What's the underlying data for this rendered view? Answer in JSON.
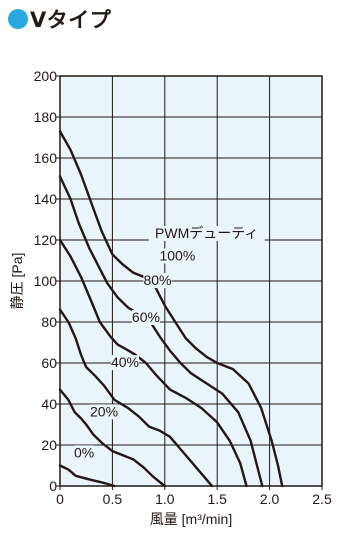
{
  "heading": {
    "title": "Vタイプ",
    "dot_color": "#29a9e0"
  },
  "colors": {
    "plot_background": "#eaf4fb",
    "grid": "#231815",
    "curve": "#231815"
  },
  "chart_data": {
    "type": "line",
    "xlabel": "風量 [m³/min]",
    "ylabel": "静圧 [Pa]",
    "xlim": [
      0,
      2.5
    ],
    "ylim": [
      0,
      200
    ],
    "xticks": [
      "0",
      "0.5",
      "1.0",
      "1.5",
      "2.0",
      "2.5"
    ],
    "yticks": [
      "0",
      "20",
      "40",
      "60",
      "80",
      "100",
      "120",
      "140",
      "160",
      "180",
      "200"
    ],
    "grid": true,
    "annotation_title": "PWMデューティ",
    "series": [
      {
        "name": "0%",
        "points": [
          [
            0,
            10
          ],
          [
            0.08,
            8
          ],
          [
            0.15,
            5
          ],
          [
            0.22,
            4
          ],
          [
            0.3,
            3
          ],
          [
            0.38,
            2
          ],
          [
            0.45,
            1
          ],
          [
            0.52,
            0
          ]
        ]
      },
      {
        "name": "20%",
        "points": [
          [
            0,
            47
          ],
          [
            0.08,
            42
          ],
          [
            0.14,
            36
          ],
          [
            0.2,
            33
          ],
          [
            0.25,
            30
          ],
          [
            0.32,
            25
          ],
          [
            0.4,
            21
          ],
          [
            0.5,
            17
          ],
          [
            0.6,
            15
          ],
          [
            0.7,
            13
          ],
          [
            0.8,
            9
          ],
          [
            0.88,
            5
          ],
          [
            0.95,
            2
          ],
          [
            1.0,
            0
          ]
        ]
      },
      {
        "name": "40%",
        "points": [
          [
            0,
            86
          ],
          [
            0.08,
            80
          ],
          [
            0.15,
            72
          ],
          [
            0.2,
            64
          ],
          [
            0.25,
            58
          ],
          [
            0.33,
            54
          ],
          [
            0.42,
            49
          ],
          [
            0.52,
            42
          ],
          [
            0.65,
            38
          ],
          [
            0.75,
            34
          ],
          [
            0.85,
            29
          ],
          [
            0.95,
            27
          ],
          [
            1.05,
            24
          ],
          [
            1.15,
            18
          ],
          [
            1.25,
            12
          ],
          [
            1.35,
            6
          ],
          [
            1.45,
            0
          ]
        ]
      },
      {
        "name": "60%",
        "points": [
          [
            0,
            120
          ],
          [
            0.1,
            112
          ],
          [
            0.2,
            102
          ],
          [
            0.3,
            90
          ],
          [
            0.38,
            80
          ],
          [
            0.48,
            73
          ],
          [
            0.55,
            69
          ],
          [
            0.62,
            67
          ],
          [
            0.72,
            64
          ],
          [
            0.82,
            60
          ],
          [
            0.92,
            54
          ],
          [
            1.05,
            47
          ],
          [
            1.2,
            43
          ],
          [
            1.35,
            38
          ],
          [
            1.5,
            31
          ],
          [
            1.62,
            22
          ],
          [
            1.72,
            11
          ],
          [
            1.78,
            0
          ]
        ]
      },
      {
        "name": "80%",
        "points": [
          [
            0,
            151
          ],
          [
            0.1,
            140
          ],
          [
            0.18,
            128
          ],
          [
            0.28,
            116
          ],
          [
            0.38,
            106
          ],
          [
            0.45,
            99
          ],
          [
            0.55,
            92
          ],
          [
            0.65,
            87
          ],
          [
            0.75,
            84
          ],
          [
            0.85,
            81
          ],
          [
            0.95,
            73
          ],
          [
            1.05,
            66
          ],
          [
            1.15,
            60
          ],
          [
            1.25,
            55
          ],
          [
            1.4,
            50
          ],
          [
            1.55,
            45
          ],
          [
            1.7,
            36
          ],
          [
            1.82,
            22
          ],
          [
            1.88,
            10
          ],
          [
            1.93,
            0
          ]
        ]
      },
      {
        "name": "100%",
        "points": [
          [
            0,
            173
          ],
          [
            0.1,
            164
          ],
          [
            0.2,
            152
          ],
          [
            0.3,
            138
          ],
          [
            0.4,
            124
          ],
          [
            0.5,
            113
          ],
          [
            0.6,
            108
          ],
          [
            0.7,
            104
          ],
          [
            0.8,
            102
          ],
          [
            0.9,
            98
          ],
          [
            1.0,
            88
          ],
          [
            1.1,
            80
          ],
          [
            1.2,
            72
          ],
          [
            1.3,
            67
          ],
          [
            1.4,
            63
          ],
          [
            1.5,
            60
          ],
          [
            1.65,
            57
          ],
          [
            1.8,
            50
          ],
          [
            1.92,
            38
          ],
          [
            2.02,
            22
          ],
          [
            2.08,
            10
          ],
          [
            2.12,
            0
          ]
        ]
      }
    ]
  }
}
